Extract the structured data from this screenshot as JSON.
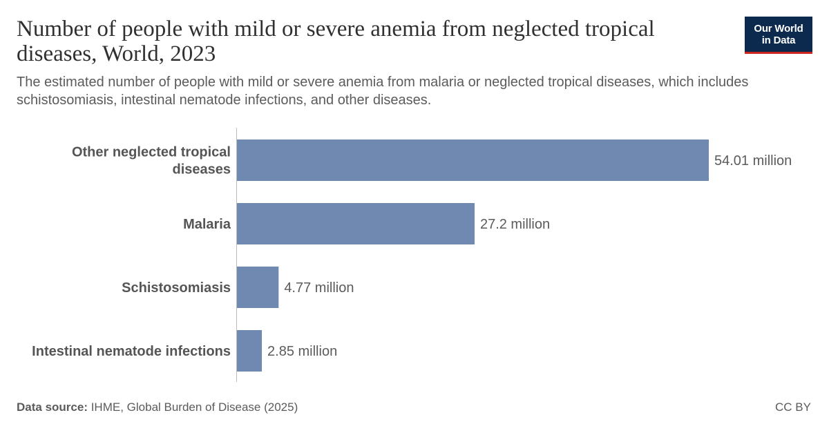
{
  "header": {
    "title": "Number of people with mild or severe anemia from neglected tropical diseases, World, 2023",
    "subtitle": "The estimated number of people with mild or severe anemia from malaria or neglected tropical diseases, which includes schistosomiasis, intestinal nematode infections, and other diseases."
  },
  "logo": {
    "line1": "Our World",
    "line2": "in Data",
    "bg_color": "#0c2a4d",
    "accent_color": "#ce261e"
  },
  "chart_data": {
    "type": "bar",
    "orientation": "horizontal",
    "categories": [
      [
        "Other neglected tropical",
        "diseases"
      ],
      [
        "Malaria"
      ],
      [
        "Schistosomiasis"
      ],
      [
        "Intestinal nematode infections"
      ]
    ],
    "values": [
      54.01,
      27.2,
      4.77,
      2.85
    ],
    "value_labels": [
      "54.01 million",
      "27.2 million",
      "4.77 million",
      "2.85 million"
    ],
    "unit": "million",
    "xlim": [
      0,
      54.01
    ],
    "bar_color": "#6f89b0",
    "grid": false
  },
  "footer": {
    "source_label": "Data source:",
    "source_text": " IHME, Global Burden of Disease (2025)",
    "license": "CC BY"
  }
}
